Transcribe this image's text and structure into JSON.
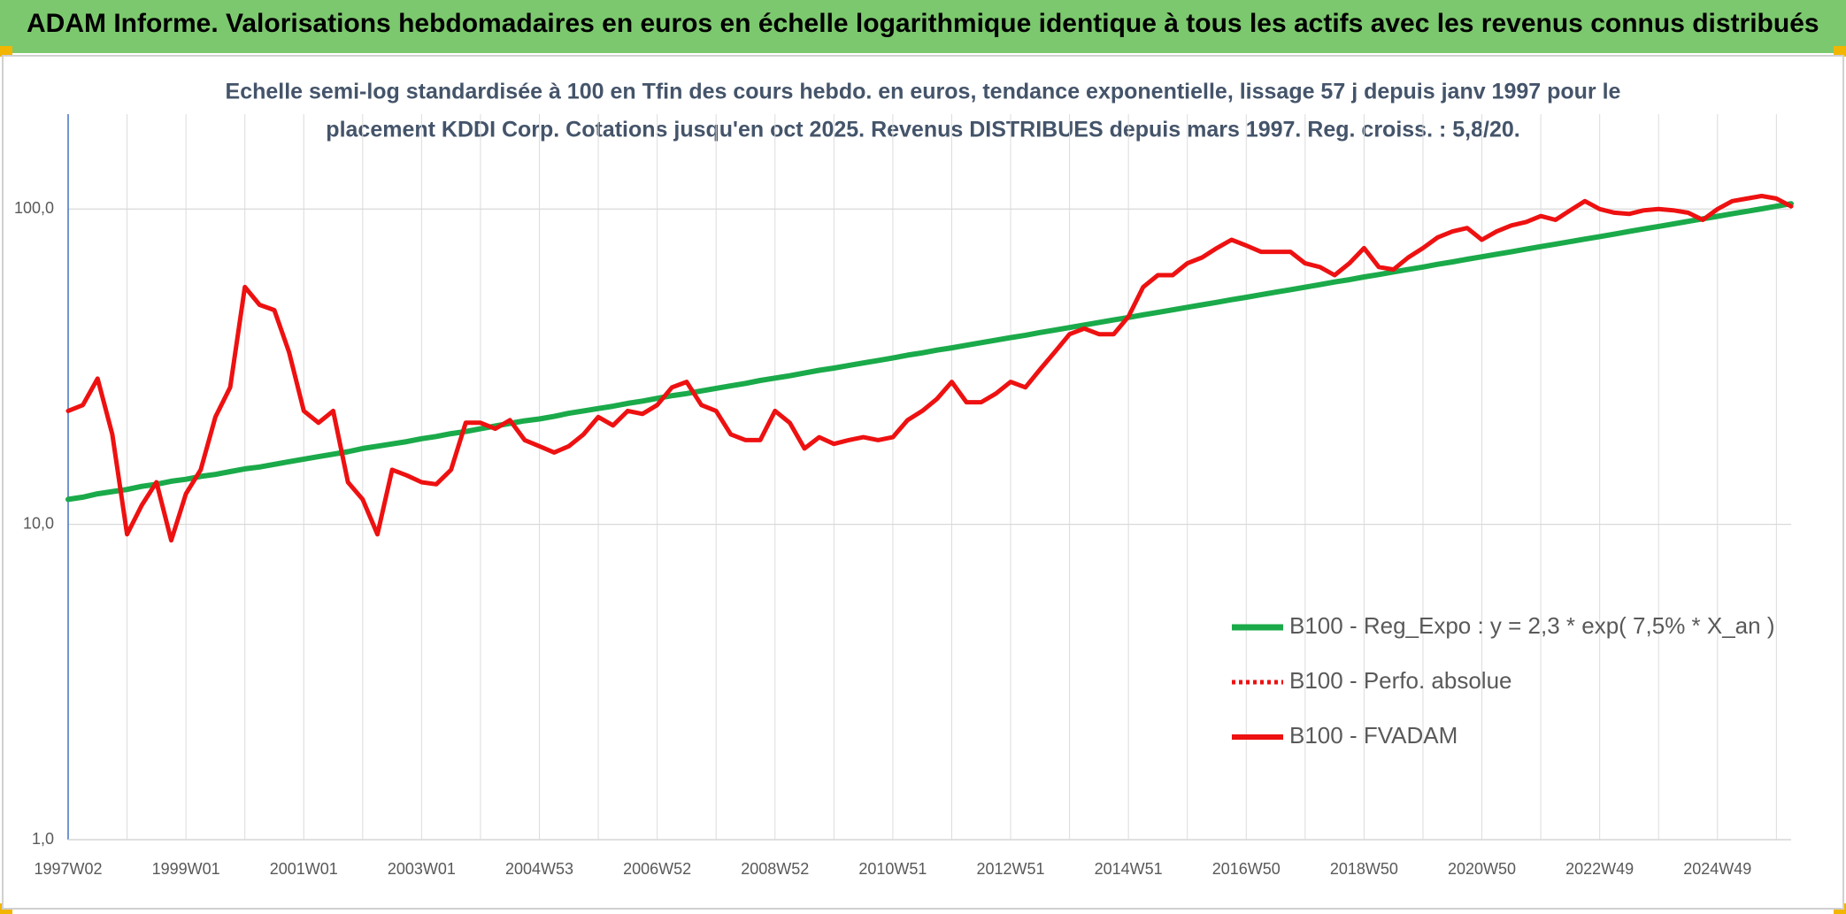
{
  "chart_data": {
    "type": "line",
    "title": "ADAM Informe. Valorisations hebdomadaires en euros en échelle logarithmique identique à tous les actifs avec les revenus connus distribués",
    "subtitle_lines": [
      "Echelle semi-log standardisée à 100 en Tfin des cours hebdo. en euros, tendance exponentielle, lissage 57 j depuis janv 1997 pour le",
      "placement KDDI Corp. Cotations jusqu'en oct 2025. Revenus DISTRIBUES depuis mars 1997. Reg. croiss. : 5,8/20."
    ],
    "yscale": "log",
    "ylim": [
      1,
      200
    ],
    "yticks": [
      {
        "value": 1,
        "label": "1,0"
      },
      {
        "value": 10,
        "label": "10,0"
      },
      {
        "value": 100,
        "label": "100,0"
      }
    ],
    "grid": true,
    "legend": "lower right",
    "categories": [
      "1997W02",
      null,
      null,
      null,
      null,
      null,
      null,
      null,
      "1999W01",
      null,
      null,
      null,
      null,
      null,
      null,
      null,
      "2001W01",
      null,
      null,
      null,
      null,
      null,
      null,
      null,
      "2003W01",
      null,
      null,
      null,
      null,
      null,
      null,
      null,
      "2004W53",
      null,
      null,
      null,
      null,
      null,
      null,
      null,
      "2006W52",
      null,
      null,
      null,
      null,
      null,
      null,
      null,
      "2008W52",
      null,
      null,
      null,
      null,
      null,
      null,
      null,
      "2010W51",
      null,
      null,
      null,
      null,
      null,
      null,
      null,
      "2012W51",
      null,
      null,
      null,
      null,
      null,
      null,
      null,
      "2014W51",
      null,
      null,
      null,
      null,
      null,
      null,
      null,
      "2016W50",
      null,
      null,
      null,
      null,
      null,
      null,
      null,
      "2018W50",
      null,
      null,
      null,
      null,
      null,
      null,
      null,
      "2020W50",
      null,
      null,
      null,
      null,
      null,
      null,
      null,
      "2022W49",
      null,
      null,
      null,
      null,
      null,
      null,
      null,
      "2024W49",
      null,
      null,
      null,
      null,
      null
    ],
    "series": [
      {
        "name": "B100 - Reg_Expo : y = 2,3 * exp( 7,5% *  X_an )",
        "color": "#1aaa4a",
        "width": 6,
        "dash": "solid",
        "values": [
          12.0,
          12.2,
          12.5,
          12.7,
          12.9,
          13.2,
          13.4,
          13.7,
          13.9,
          14.2,
          14.4,
          14.7,
          15.0,
          15.2,
          15.5,
          15.8,
          16.1,
          16.4,
          16.7,
          17.0,
          17.4,
          17.7,
          18.0,
          18.3,
          18.7,
          19.0,
          19.4,
          19.7,
          20.1,
          20.5,
          20.9,
          21.3,
          21.6,
          22.0,
          22.5,
          22.9,
          23.3,
          23.7,
          24.2,
          24.6,
          25.1,
          25.6,
          26.0,
          26.5,
          27.0,
          27.5,
          28.0,
          28.6,
          29.1,
          29.6,
          30.2,
          30.8,
          31.3,
          31.9,
          32.5,
          33.1,
          33.7,
          34.4,
          35.0,
          35.7,
          36.3,
          37.0,
          37.7,
          38.4,
          39.1,
          39.8,
          40.6,
          41.3,
          42.1,
          42.9,
          43.7,
          44.5,
          45.3,
          46.2,
          47.0,
          47.9,
          48.8,
          49.7,
          50.6,
          51.6,
          52.5,
          53.5,
          54.5,
          55.5,
          56.5,
          57.6,
          58.7,
          59.7,
          60.9,
          62.0,
          63.2,
          64.3,
          65.5,
          66.8,
          68.0,
          69.3,
          70.6,
          71.9,
          73.2,
          74.6,
          76.0,
          77.4,
          78.8,
          80.3,
          81.8,
          83.3,
          84.9,
          86.5,
          88.1,
          89.7,
          91.4,
          93.1,
          94.8,
          96.6,
          98.4,
          100.2,
          102.1,
          104.0
        ]
      },
      {
        "name": "B100 - Perfo. absolue",
        "color": "#ee1111",
        "width": 4,
        "dash": "dotted",
        "values": [
          22.9,
          23.9,
          29,
          19.3,
          9.3,
          11.5,
          13.6,
          8.9,
          12.5,
          14.9,
          21.9,
          27.2,
          56.6,
          49.7,
          47.8,
          35.2,
          22.9,
          21,
          22.9,
          13.6,
          12,
          9.3,
          14.9,
          14.3,
          13.6,
          13.4,
          14.9,
          21,
          21,
          20.1,
          21.4,
          18.5,
          17.7,
          16.9,
          17.7,
          19.3,
          21.9,
          20.6,
          22.9,
          22.4,
          23.9,
          27.2,
          28.3,
          23.9,
          22.9,
          19.3,
          18.5,
          18.5,
          22.9,
          21,
          17.4,
          18.9,
          18,
          18.5,
          18.9,
          18.5,
          18.9,
          21.4,
          22.9,
          25,
          28.3,
          24.4,
          24.4,
          26,
          28.3,
          27.2,
          31,
          35.2,
          40.1,
          41.8,
          40.1,
          40.1,
          45.6,
          56.6,
          61.7,
          61.7,
          67.3,
          70.2,
          75.2,
          79.9,
          76.6,
          73.2,
          73.2,
          73.2,
          67.3,
          65.5,
          61.7,
          67.3,
          75.2,
          65.5,
          64.3,
          70.2,
          75.2,
          81.3,
          84.9,
          87.1,
          79.9,
          84.9,
          88.7,
          91,
          95,
          92.4,
          99.1,
          106,
          100,
          97.4,
          96.5,
          99.1,
          100,
          99.1,
          97.4,
          92.4,
          100,
          106,
          108,
          110,
          108,
          102
        ]
      },
      {
        "name": "B100 - FVADAM",
        "color": "#ee1111",
        "width": 5,
        "dash": "solid",
        "values": [
          22.9,
          23.9,
          29,
          19.3,
          9.3,
          11.5,
          13.6,
          8.9,
          12.5,
          14.9,
          21.9,
          27.2,
          56.6,
          49.7,
          47.8,
          35.2,
          22.9,
          21,
          22.9,
          13.6,
          12,
          9.3,
          14.9,
          14.3,
          13.6,
          13.4,
          14.9,
          21,
          21,
          20.1,
          21.4,
          18.5,
          17.7,
          16.9,
          17.7,
          19.3,
          21.9,
          20.6,
          22.9,
          22.4,
          23.9,
          27.2,
          28.3,
          23.9,
          22.9,
          19.3,
          18.5,
          18.5,
          22.9,
          21,
          17.4,
          18.9,
          18,
          18.5,
          18.9,
          18.5,
          18.9,
          21.4,
          22.9,
          25,
          28.3,
          24.4,
          24.4,
          26,
          28.3,
          27.2,
          31,
          35.2,
          40.1,
          41.8,
          40.1,
          40.1,
          45.6,
          56.6,
          61.7,
          61.7,
          67.3,
          70.2,
          75.2,
          79.9,
          76.6,
          73.2,
          73.2,
          73.2,
          67.3,
          65.5,
          61.7,
          67.3,
          75.2,
          65.5,
          64.3,
          70.2,
          75.2,
          81.3,
          84.9,
          87.1,
          79.9,
          84.9,
          88.7,
          91,
          95,
          92.4,
          99.1,
          106,
          100,
          97.4,
          96.5,
          99.1,
          100,
          99.1,
          97.4,
          92.4,
          100,
          106,
          108,
          110,
          108,
          102
        ]
      }
    ]
  }
}
